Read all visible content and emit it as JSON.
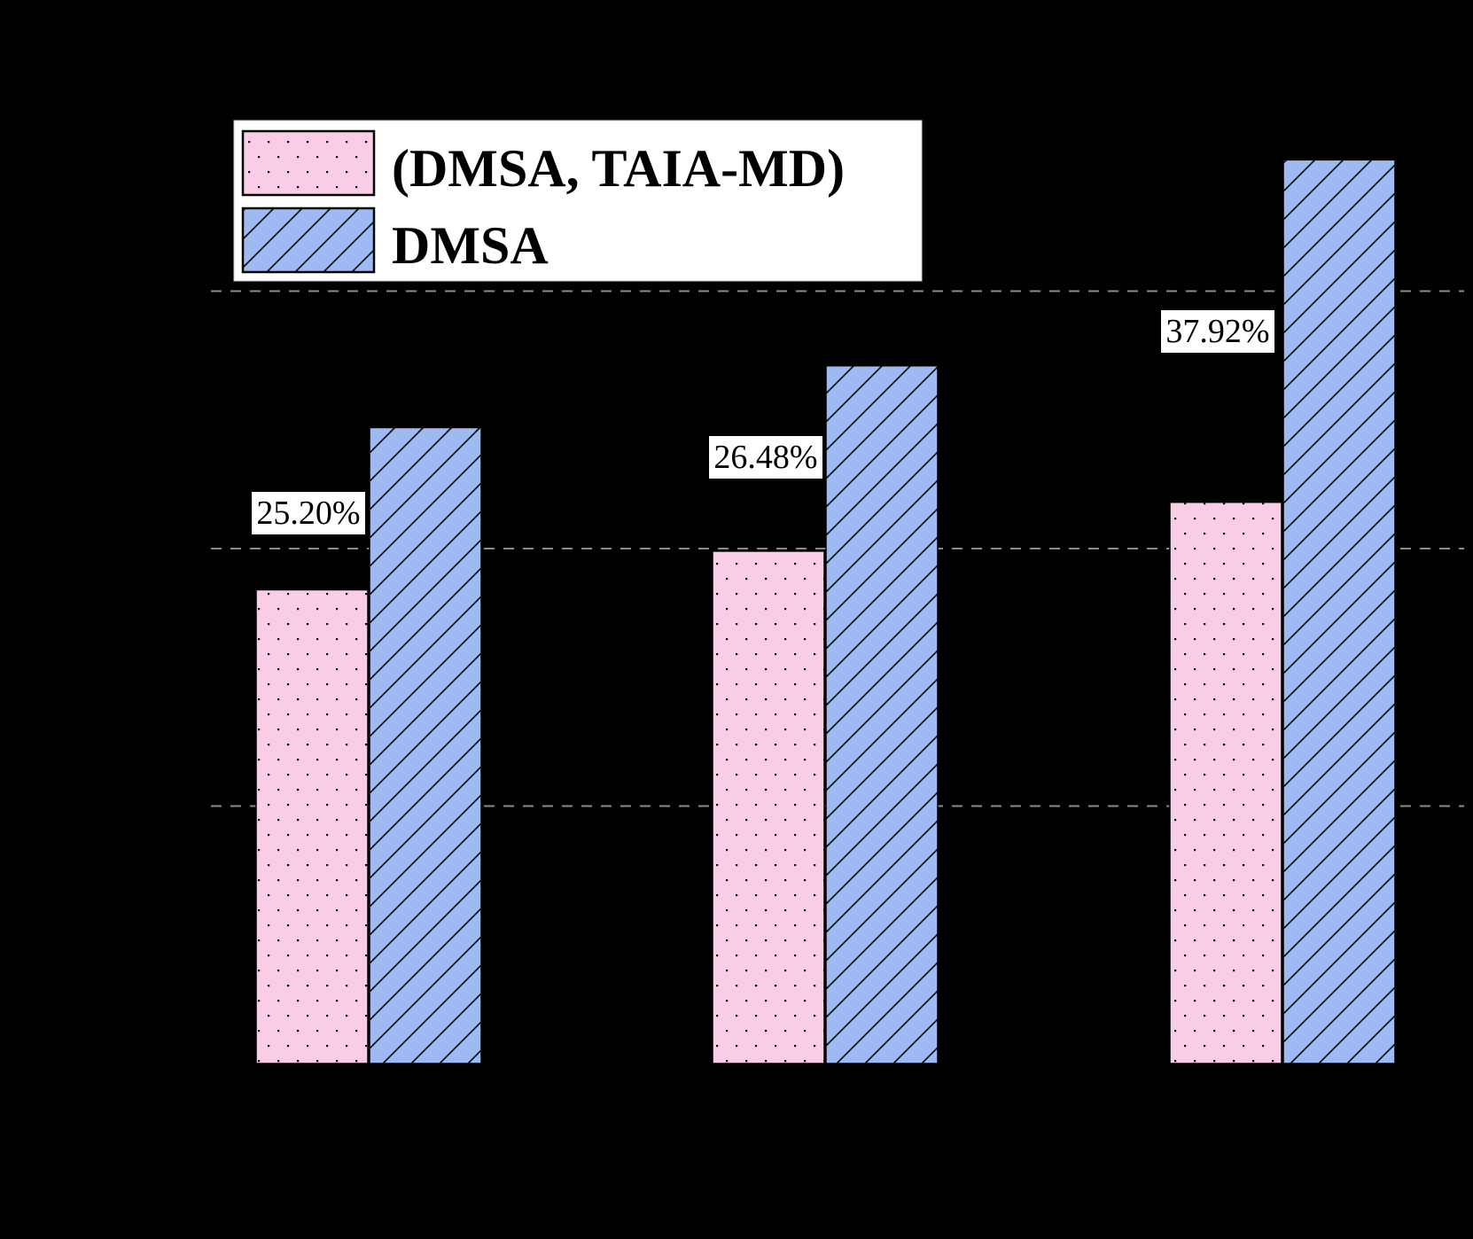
{
  "chart_data": {
    "type": "bar",
    "title": "",
    "xlabel": "",
    "ylabel": "",
    "categories": [
      "",
      "",
      ""
    ],
    "series": [
      {
        "name": "(DMSA, TAIA-MD)",
        "values": [
          18.4,
          19.9,
          21.8
        ],
        "color": "#F9CDE6",
        "hatch": "dots"
      },
      {
        "name": "DMSA",
        "values": [
          24.7,
          27.1,
          35.1
        ],
        "color": "#9DBBF2",
        "hatch": "diagonal"
      }
    ],
    "annotations": [
      "25.20%",
      "26.48%",
      "37.92%"
    ],
    "gridlines_y": [
      10,
      20,
      30
    ],
    "ylim": [
      0,
      36
    ],
    "grid": true,
    "legend_position": "upper left"
  },
  "legend": {
    "items": [
      {
        "label": "(DMSA, TAIA-MD)"
      },
      {
        "label": "DMSA"
      }
    ]
  },
  "labels": [
    "25.20%",
    "26.48%",
    "37.92%"
  ],
  "colors": {
    "background": "#000000",
    "pink": "#F9CDE6",
    "blue": "#9DBBF2",
    "grid": "#8a8a8a"
  }
}
